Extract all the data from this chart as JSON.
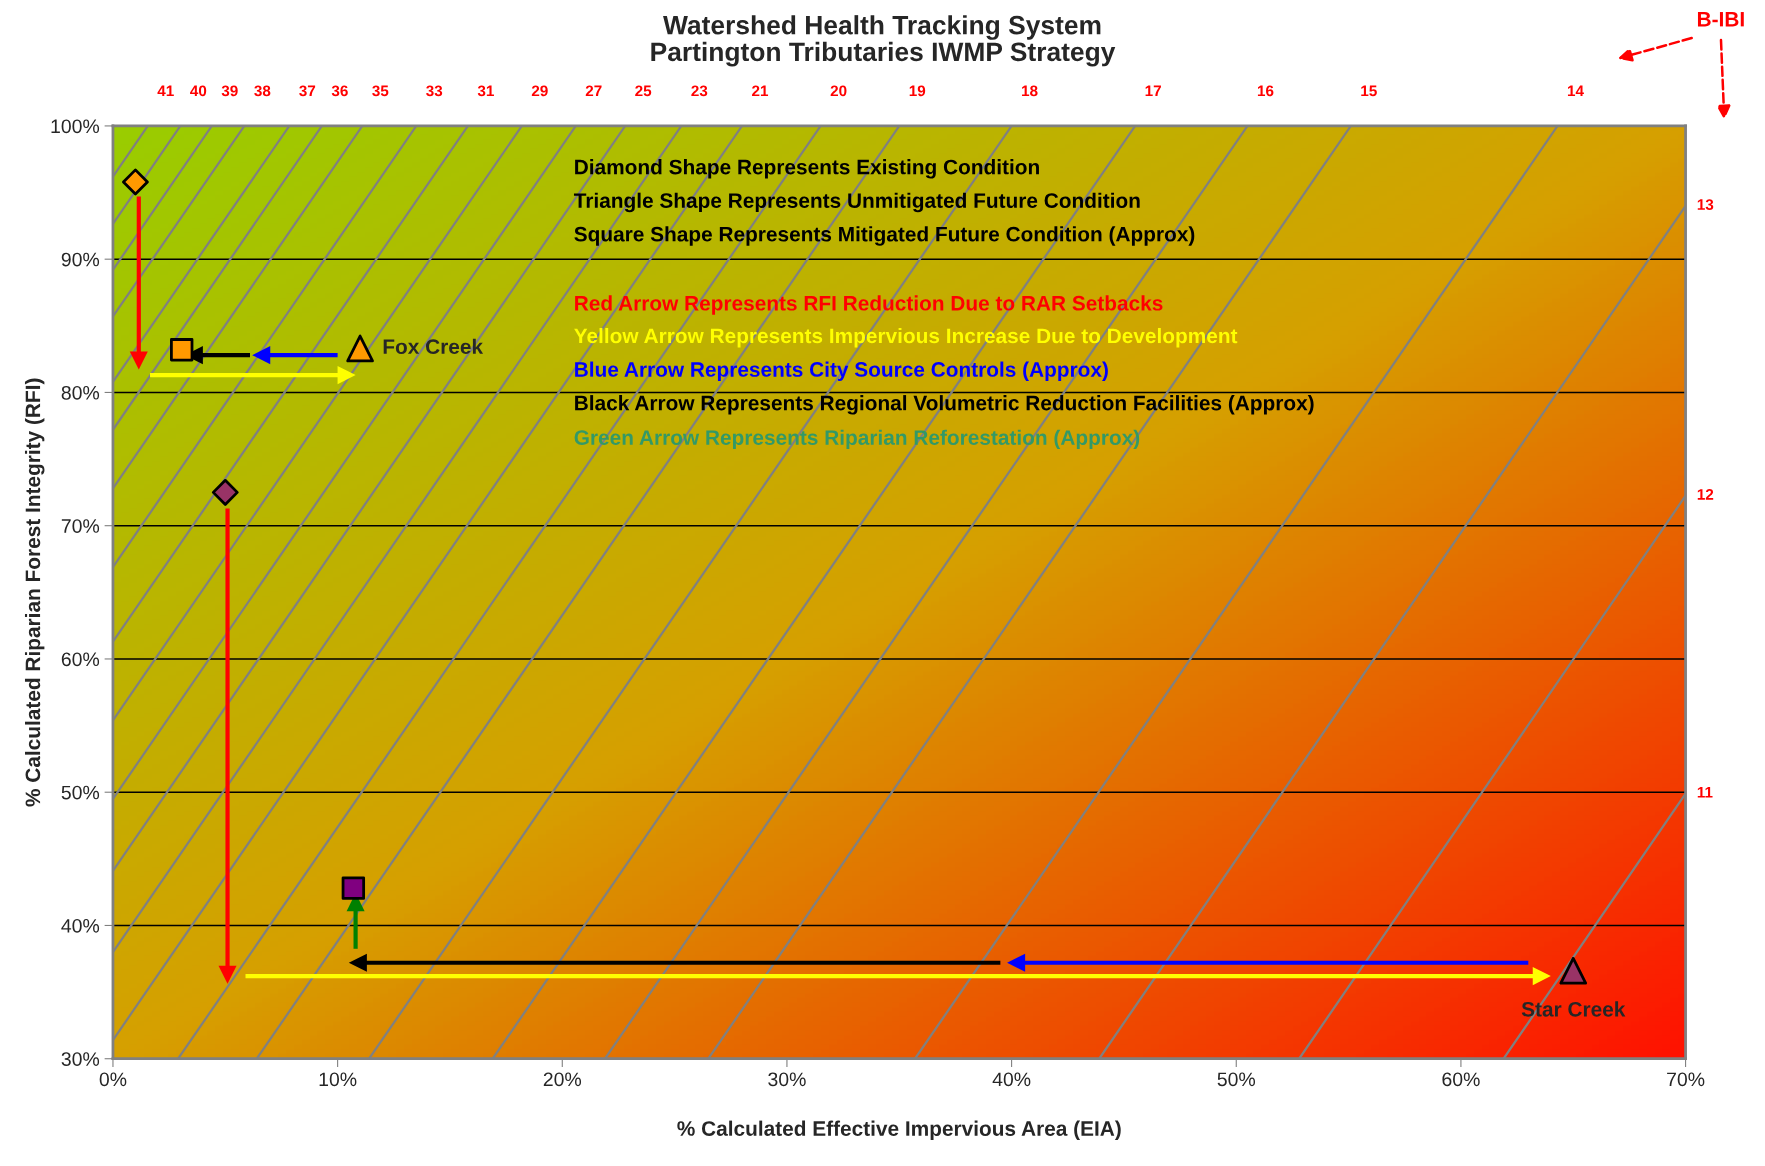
{
  "chart_data": {
    "type": "scatter",
    "title": "Watershed Health Tracking System\nPartington Tributaries IWMP Strategy",
    "xlabel": "% Calculated Effective Impervious Area (EIA)",
    "ylabel": "% Calculated Riparian Forest Integrity (RFI)",
    "xlim": [
      0,
      70
    ],
    "xticks": [
      {
        "value": 0,
        "label": "0%"
      },
      {
        "value": 10,
        "label": "10%"
      },
      {
        "value": 20,
        "label": "20%"
      },
      {
        "value": 30,
        "label": "30%"
      },
      {
        "value": 40,
        "label": "40%"
      },
      {
        "value": 50,
        "label": "50%"
      },
      {
        "value": 60,
        "label": "60%"
      },
      {
        "value": 70,
        "label": "70%"
      }
    ],
    "ylim": [
      30,
      100
    ],
    "yticks": [
      {
        "value": 30,
        "label": "30%"
      },
      {
        "value": 40,
        "label": "40%"
      },
      {
        "value": 50,
        "label": "50%"
      },
      {
        "value": 60,
        "label": "60%"
      },
      {
        "value": 70,
        "label": "70%"
      },
      {
        "value": 80,
        "label": "80%"
      },
      {
        "value": 90,
        "label": "90%"
      },
      {
        "value": 100,
        "label": "100%"
      }
    ],
    "grid": "y",
    "series": [
      {
        "type": "line",
        "name": "41",
        "color": "#808080",
        "x": [
          0,
          1.55
        ],
        "values": [
          96.2,
          100
        ]
      },
      {
        "type": "line",
        "name": "40",
        "color": "#808080",
        "x": [
          0,
          3.0
        ],
        "values": [
          92.65,
          100
        ]
      },
      {
        "type": "line",
        "name": "39",
        "color": "#808080",
        "x": [
          0,
          4.4
        ],
        "values": [
          89.2,
          100
        ]
      },
      {
        "type": "line",
        "name": "38",
        "color": "#808080",
        "x": [
          0,
          5.85
        ],
        "values": [
          85.7,
          100
        ]
      },
      {
        "type": "line",
        "name": "37",
        "color": "#808080",
        "x": [
          0,
          7.85
        ],
        "values": [
          80.8,
          100
        ]
      },
      {
        "type": "line",
        "name": "36",
        "color": "#808080",
        "x": [
          0,
          9.3
        ],
        "values": [
          77.2,
          100
        ]
      },
      {
        "type": "line",
        "name": "35",
        "color": "#808080",
        "x": [
          0,
          11.1
        ],
        "values": [
          72.8,
          100
        ]
      },
      {
        "type": "line",
        "name": "33",
        "color": "#808080",
        "x": [
          0,
          13.5
        ],
        "values": [
          66.9,
          100
        ]
      },
      {
        "type": "line",
        "name": "31",
        "color": "#808080",
        "x": [
          0,
          15.8
        ],
        "values": [
          61.3,
          100
        ]
      },
      {
        "type": "line",
        "name": "29",
        "color": "#808080",
        "x": [
          0,
          18.2
        ],
        "values": [
          55.4,
          100
        ]
      },
      {
        "type": "line",
        "name": "27",
        "color": "#808080",
        "x": [
          0,
          20.6
        ],
        "values": [
          49.5,
          100
        ]
      },
      {
        "type": "line",
        "name": "25",
        "color": "#808080",
        "x": [
          0,
          22.8
        ],
        "values": [
          44.1,
          100
        ]
      },
      {
        "type": "line",
        "name": "23",
        "color": "#808080",
        "x": [
          0,
          25.3
        ],
        "values": [
          38.0,
          100
        ]
      },
      {
        "type": "line",
        "name": "21",
        "color": "#808080",
        "x": [
          0,
          28.0
        ],
        "values": [
          31.4,
          100
        ]
      },
      {
        "type": "line",
        "name": "20",
        "color": "#808080",
        "x": [
          2.9,
          31.5
        ],
        "values": [
          30,
          100
        ]
      },
      {
        "type": "line",
        "name": "19",
        "color": "#808080",
        "x": [
          6.4,
          35.0
        ],
        "values": [
          30,
          100
        ]
      },
      {
        "type": "line",
        "name": "18",
        "color": "#808080",
        "x": [
          11.4,
          40.0
        ],
        "values": [
          30,
          100
        ]
      },
      {
        "type": "line",
        "name": "17",
        "color": "#808080",
        "x": [
          16.9,
          45.5
        ],
        "values": [
          30,
          100
        ]
      },
      {
        "type": "line",
        "name": "16",
        "color": "#808080",
        "x": [
          21.9,
          50.5
        ],
        "values": [
          30,
          100
        ]
      },
      {
        "type": "line",
        "name": "15",
        "color": "#808080",
        "x": [
          26.5,
          55.1
        ],
        "values": [
          30,
          100
        ]
      },
      {
        "type": "line",
        "name": "14",
        "color": "#808080",
        "x": [
          35.7,
          64.3
        ],
        "values": [
          30,
          100
        ]
      },
      {
        "type": "line",
        "name": "13",
        "color": "#808080",
        "x": [
          43.9,
          70
        ],
        "values": [
          30,
          94.0
        ]
      },
      {
        "type": "line",
        "name": "12",
        "color": "#808080",
        "x": [
          52.8,
          70
        ],
        "values": [
          30,
          72.25
        ]
      },
      {
        "type": "line",
        "name": "11",
        "color": "#808080",
        "x": [
          61.9,
          70
        ],
        "values": [
          30,
          49.9
        ]
      },
      {
        "type": "line",
        "marker": "triangle",
        "color": "#ff0000",
        "x": [
          1.15,
          1.15
        ],
        "values": [
          94.7,
          82.4
        ]
      },
      {
        "type": "line",
        "marker": "triangle",
        "color": "#ffff00",
        "x": [
          1.65,
          10.4
        ],
        "values": [
          81.3,
          81.3
        ]
      },
      {
        "type": "line",
        "marker": "triangle",
        "color": "#0000ff",
        "x": [
          10.0,
          6.6
        ],
        "values": [
          82.8,
          82.8
        ]
      },
      {
        "type": "line",
        "marker": "triangle",
        "color": "#000000",
        "x": [
          6.1,
          3.6
        ],
        "values": [
          82.8,
          82.8
        ]
      },
      {
        "type": "line",
        "marker": "triangle",
        "color": "#ff0000",
        "x": [
          5.1,
          5.1
        ],
        "values": [
          71.3,
          36.3
        ]
      },
      {
        "type": "line",
        "marker": "triangle",
        "color": "#ffff00",
        "x": [
          5.9,
          63.6
        ],
        "values": [
          36.2,
          36.2
        ]
      },
      {
        "type": "line",
        "marker": "triangle",
        "color": "#0000ff",
        "x": [
          63.0,
          40.2
        ],
        "values": [
          37.2,
          37.2
        ]
      },
      {
        "type": "line",
        "marker": "triangle",
        "color": "#000000",
        "x": [
          39.5,
          10.9
        ],
        "values": [
          37.2,
          37.2
        ]
      },
      {
        "type": "line",
        "marker": "triangle",
        "color": "#008000",
        "x": [
          10.8,
          10.8
        ],
        "values": [
          38.25,
          41.75
        ]
      },
      {
        "type": "scatter",
        "marker": "diamond",
        "x": [
          1.0,
          5.0
        ],
        "values": [
          95.8,
          72.5
        ],
        "colors": [
          "#ff9900",
          "#993366"
        ]
      },
      {
        "type": "scatter",
        "marker": "square",
        "x": [
          3.06,
          10.7
        ],
        "values": [
          83.2,
          42.8
        ],
        "colors": [
          "#ff9900",
          "#800080"
        ]
      },
      {
        "type": "scatter",
        "marker": "triangle",
        "x": [
          11.0,
          65.0
        ],
        "values": [
          83.3,
          36.6
        ],
        "colors": [
          "#ff9900",
          "#993366"
        ]
      }
    ],
    "annotations": [
      "Diamond Shape Represents Existing Condition",
      "Triangle Shape Represents Unmitigated Future Condition",
      "Square Shape Represents Mitigated Future Condition (Approx)",
      "Red Arrow Represents RFI Reduction Due to RAR Setbacks",
      "Yellow Arrow Represents Impervious Increase Due to Development",
      "Blue Arrow Represents City Source Controls (Approx)",
      "Black Arrow Represents Regional Volumetric Reduction Facilities (Approx)",
      "Green Arrow Represents Riparian Reforestation (Approx)",
      "B-IBI",
      {
        "text": "Fox Creek",
        "x": 11.0,
        "y": 83.3
      },
      {
        "text": "Star Creek",
        "x": 65.0,
        "y": 36.6
      }
    ]
  }
}
